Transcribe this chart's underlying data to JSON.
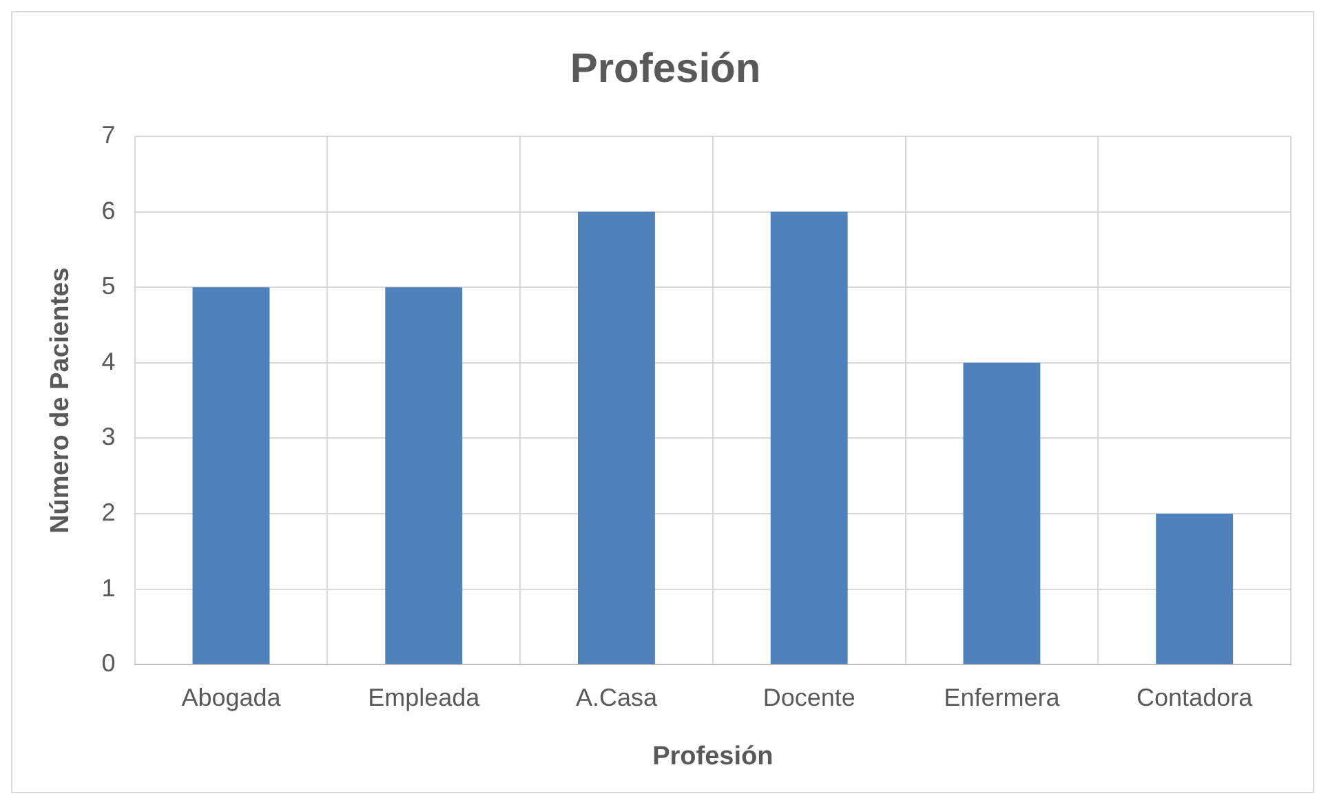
{
  "chart_data": {
    "type": "bar",
    "title": "Profesión",
    "xlabel": "Profesión",
    "ylabel": "Número de Pacientes",
    "categories": [
      "Abogada",
      "Empleada",
      "A.Casa",
      "Docente",
      "Enfermera",
      "Contadora"
    ],
    "values": [
      5,
      5,
      6,
      6,
      4,
      2
    ],
    "color": "#4f81bd",
    "ylim": [
      0,
      7
    ],
    "yticks": [
      0,
      1,
      2,
      3,
      4,
      5,
      6,
      7
    ],
    "grid": true
  }
}
